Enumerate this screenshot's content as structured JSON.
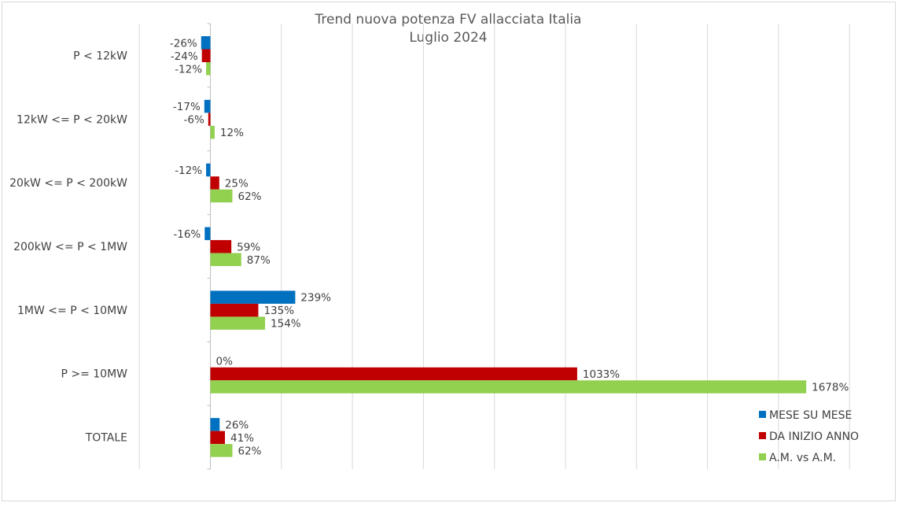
{
  "chart_data": {
    "type": "bar",
    "orientation": "horizontal",
    "title": "Trend nuova potenza FV allacciata Italia",
    "subtitle": "Luglio 2024",
    "categories": [
      "P < 12kW",
      "12kW <= P < 20kW",
      "20kW <= P < 200kW",
      "200kW <= P < 1MW",
      "1MW <= P < 10MW",
      "P >= 10MW",
      "TOTALE"
    ],
    "series": [
      {
        "name": "MESE SU  MESE",
        "color": "#0070c0",
        "values": [
          -26,
          -17,
          -12,
          -16,
          239,
          0,
          26
        ]
      },
      {
        "name": "DA INIZIO ANNO",
        "color": "#c00000",
        "values": [
          -24,
          -6,
          25,
          59,
          135,
          1033,
          41
        ]
      },
      {
        "name": "A.M. vs A.M.",
        "color": "#92d050",
        "values": [
          -12,
          12,
          62,
          87,
          154,
          1678,
          62
        ]
      }
    ],
    "value_suffix": "%",
    "xlim": [
      -200,
      1800
    ],
    "grid": "vertical",
    "legend_position": "bottom-right"
  }
}
